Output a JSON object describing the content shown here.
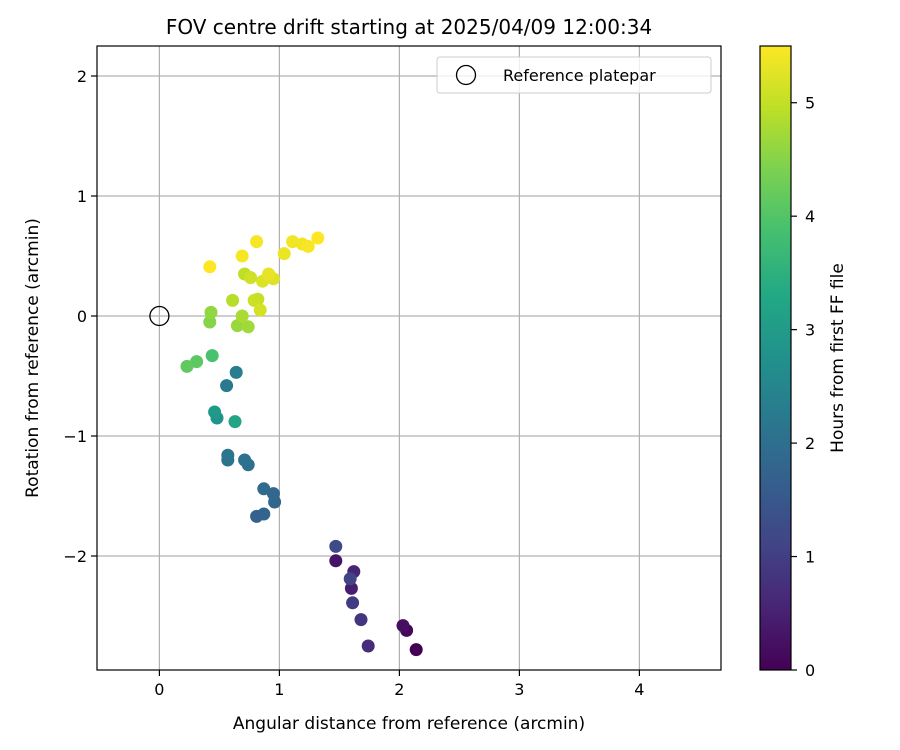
{
  "chart_data": {
    "type": "scatter",
    "title": "FOV centre drift starting at 2025/04/09 12:00:34",
    "xlabel": "Angular distance from reference (arcmin)",
    "ylabel": "Rotation from reference (arcmin)",
    "xlim": [
      -0.52,
      4.68
    ],
    "ylim": [
      -2.95,
      2.25
    ],
    "xticks": [
      0,
      1,
      2,
      3,
      4
    ],
    "xtick_labels": [
      "0",
      "1",
      "2",
      "3",
      "4"
    ],
    "yticks": [
      -2,
      -1,
      0,
      1,
      2
    ],
    "ytick_labels": [
      "−2",
      "−1",
      "0",
      "1",
      "2"
    ],
    "grid": true,
    "legend": {
      "placement": "top-right",
      "entries": [
        "Reference platepar"
      ]
    },
    "reference_point": {
      "x": 0,
      "y": 0,
      "name": "Reference platepar"
    },
    "colorbar": {
      "label": "Hours from first FF file",
      "range": [
        0,
        5.5
      ],
      "ticks": [
        0,
        1,
        2,
        3,
        4,
        5
      ],
      "colormap": "viridis"
    },
    "points": [
      {
        "x": 2.14,
        "y": -2.78,
        "c": 0.0
      },
      {
        "x": 2.06,
        "y": -2.62,
        "c": 0.1
      },
      {
        "x": 2.03,
        "y": -2.58,
        "c": 0.2
      },
      {
        "x": 1.47,
        "y": -2.04,
        "c": 0.3
      },
      {
        "x": 1.6,
        "y": -2.27,
        "c": 0.45
      },
      {
        "x": 1.62,
        "y": -2.13,
        "c": 0.55
      },
      {
        "x": 1.74,
        "y": -2.75,
        "c": 0.7
      },
      {
        "x": 1.68,
        "y": -2.53,
        "c": 0.85
      },
      {
        "x": 1.61,
        "y": -2.39,
        "c": 0.95
      },
      {
        "x": 1.59,
        "y": -2.19,
        "c": 1.1
      },
      {
        "x": 1.47,
        "y": -1.92,
        "c": 1.25
      },
      {
        "x": 0.81,
        "y": -1.67,
        "c": 1.7
      },
      {
        "x": 0.87,
        "y": -1.65,
        "c": 1.75
      },
      {
        "x": 0.96,
        "y": -1.55,
        "c": 1.8
      },
      {
        "x": 0.95,
        "y": -1.48,
        "c": 1.85
      },
      {
        "x": 0.87,
        "y": -1.44,
        "c": 1.9
      },
      {
        "x": 0.74,
        "y": -1.24,
        "c": 2.0
      },
      {
        "x": 0.71,
        "y": -1.2,
        "c": 2.05
      },
      {
        "x": 0.57,
        "y": -1.2,
        "c": 2.1
      },
      {
        "x": 0.57,
        "y": -1.16,
        "c": 2.15
      },
      {
        "x": 0.56,
        "y": -0.58,
        "c": 2.25
      },
      {
        "x": 0.64,
        "y": -0.47,
        "c": 2.3
      },
      {
        "x": 0.48,
        "y": -0.85,
        "c": 2.8
      },
      {
        "x": 0.46,
        "y": -0.8,
        "c": 2.95
      },
      {
        "x": 0.63,
        "y": -0.88,
        "c": 3.2
      },
      {
        "x": 0.44,
        "y": -0.33,
        "c": 3.9
      },
      {
        "x": 0.31,
        "y": -0.38,
        "c": 4.1
      },
      {
        "x": 0.23,
        "y": -0.42,
        "c": 4.15
      },
      {
        "x": 0.42,
        "y": -0.05,
        "c": 4.5
      },
      {
        "x": 0.43,
        "y": 0.03,
        "c": 4.6
      },
      {
        "x": 0.65,
        "y": -0.08,
        "c": 4.65
      },
      {
        "x": 0.74,
        "y": -0.09,
        "c": 4.7
      },
      {
        "x": 0.69,
        "y": 0.0,
        "c": 4.8
      },
      {
        "x": 0.61,
        "y": 0.13,
        "c": 4.9
      },
      {
        "x": 0.71,
        "y": 0.35,
        "c": 4.95
      },
      {
        "x": 0.82,
        "y": 0.14,
        "c": 5.0
      },
      {
        "x": 0.79,
        "y": 0.13,
        "c": 5.05
      },
      {
        "x": 0.76,
        "y": 0.32,
        "c": 5.1
      },
      {
        "x": 0.84,
        "y": 0.05,
        "c": 5.15
      },
      {
        "x": 0.86,
        "y": 0.29,
        "c": 5.2
      },
      {
        "x": 0.95,
        "y": 0.31,
        "c": 5.25
      },
      {
        "x": 0.91,
        "y": 0.35,
        "c": 5.3
      },
      {
        "x": 1.04,
        "y": 0.52,
        "c": 5.35
      },
      {
        "x": 1.11,
        "y": 0.62,
        "c": 5.4
      },
      {
        "x": 1.19,
        "y": 0.6,
        "c": 5.4
      },
      {
        "x": 1.24,
        "y": 0.58,
        "c": 5.45
      },
      {
        "x": 0.69,
        "y": 0.5,
        "c": 5.45
      },
      {
        "x": 0.81,
        "y": 0.62,
        "c": 5.45
      },
      {
        "x": 0.42,
        "y": 0.41,
        "c": 5.5
      },
      {
        "x": 1.32,
        "y": 0.65,
        "c": 5.5
      }
    ]
  }
}
